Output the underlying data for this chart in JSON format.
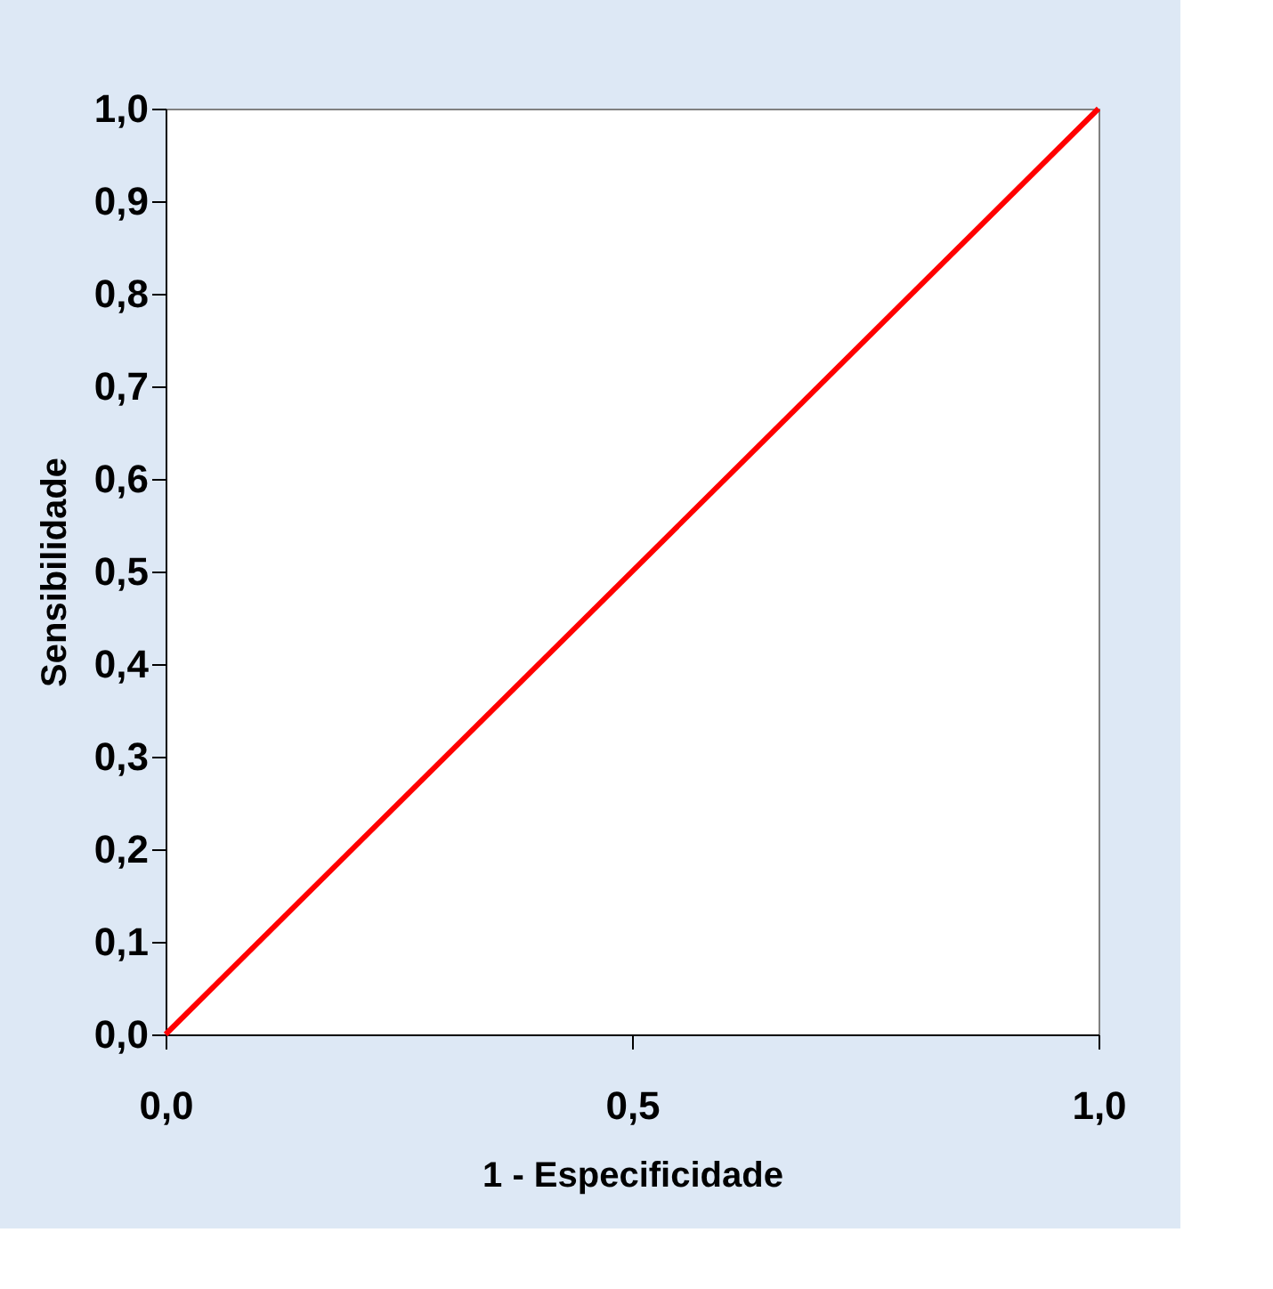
{
  "chart_data": {
    "type": "line",
    "xlabel": "1 - Especificidade",
    "ylabel": "Sensibilidade",
    "x": [
      0,
      1
    ],
    "series": [
      {
        "color": "#ff0000",
        "values": [
          0,
          1
        ]
      }
    ],
    "xlim": [
      0,
      1
    ],
    "ylim": [
      0,
      1
    ],
    "xticks": [
      {
        "value": 0,
        "label": "0,0"
      },
      {
        "value": 0.5,
        "label": "0,5"
      },
      {
        "value": 1,
        "label": "1,0"
      }
    ],
    "yticks": [
      {
        "value": 0,
        "label": "0,0"
      },
      {
        "value": 0.1,
        "label": "0,1"
      },
      {
        "value": 0.2,
        "label": "0,2"
      },
      {
        "value": 0.3,
        "label": "0,3"
      },
      {
        "value": 0.4,
        "label": "0,4"
      },
      {
        "value": 0.5,
        "label": "0,5"
      },
      {
        "value": 0.6,
        "label": "0,6"
      },
      {
        "value": 0.7,
        "label": "0,7"
      },
      {
        "value": 0.8,
        "label": "0,8"
      },
      {
        "value": 0.9,
        "label": "0,9"
      },
      {
        "value": 1,
        "label": "1,0"
      }
    ],
    "grid": false,
    "marker": "none",
    "line_style": "solid"
  }
}
